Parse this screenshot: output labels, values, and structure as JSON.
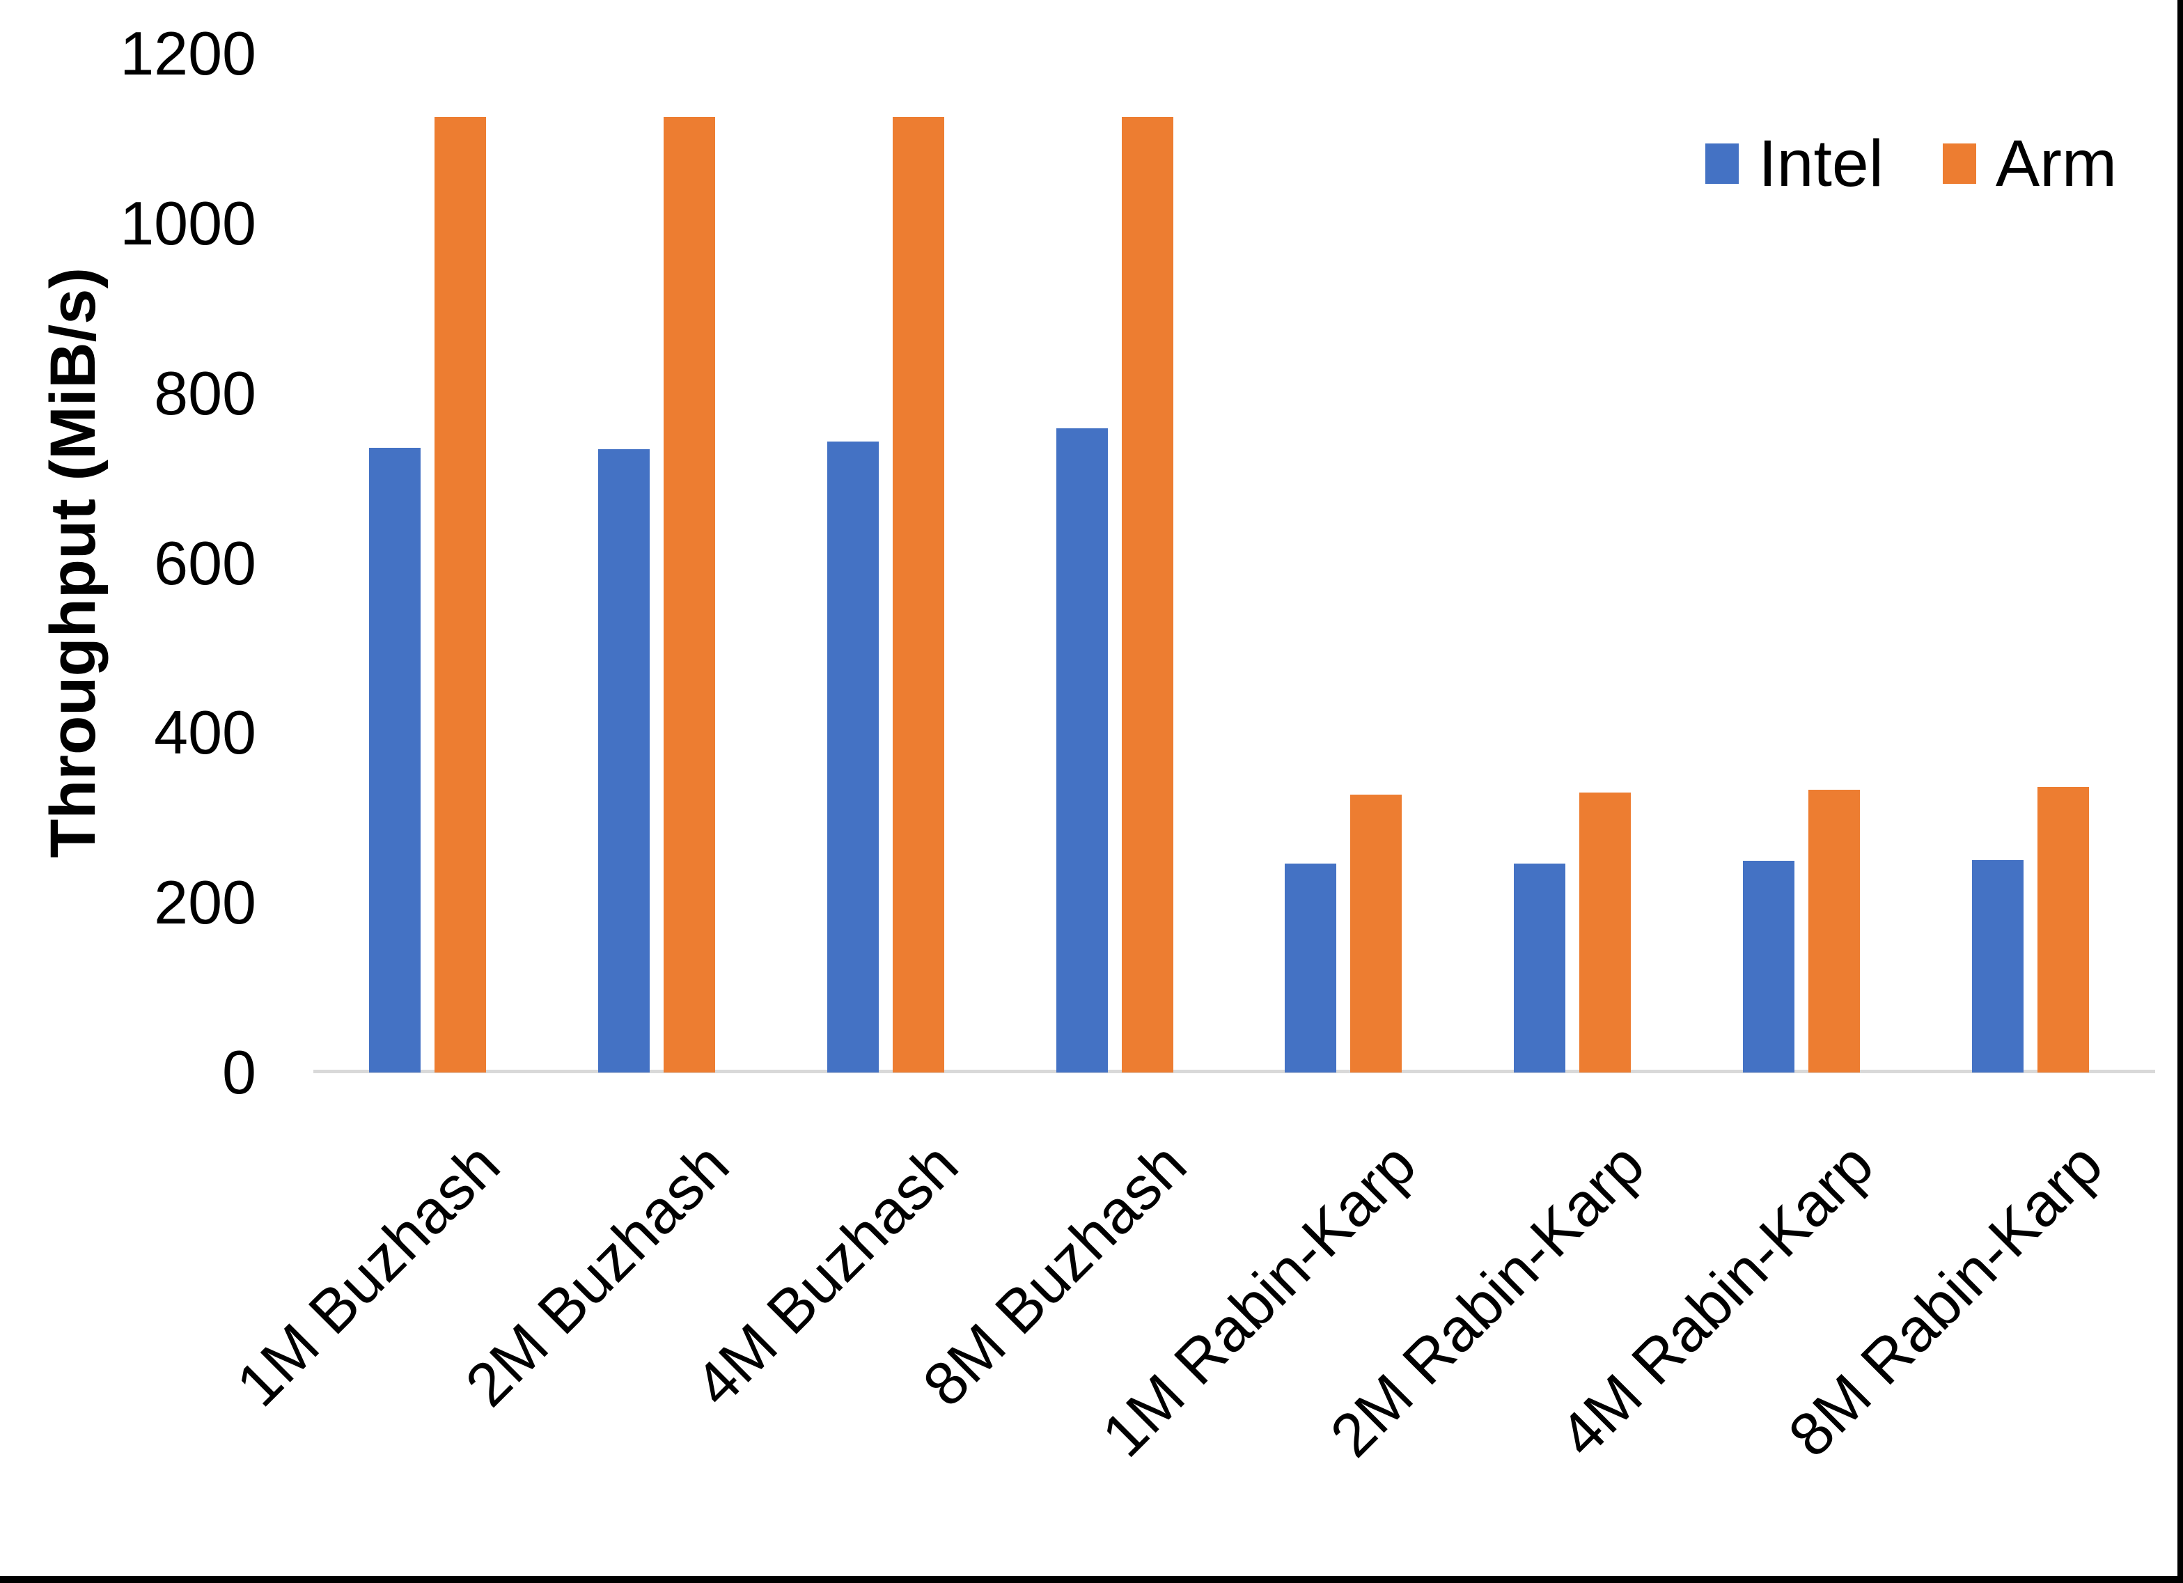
{
  "chart_data": {
    "type": "bar",
    "title": "",
    "ylabel": "Throughput (MiB/s)",
    "xlabel": "",
    "ylim": [
      0,
      1200
    ],
    "yticks": [
      0,
      200,
      400,
      600,
      800,
      1000,
      1200
    ],
    "grid": false,
    "legend_position": "top-right",
    "categories": [
      "1M Buzhash",
      "2M Buzhash",
      "4M Buzhash",
      "8M Buzhash",
      "1M Rabin-Karp",
      "2M Rabin-Karp",
      "4M Rabin-Karp",
      "8M Rabin-Karp"
    ],
    "series": [
      {
        "name": "Intel",
        "color": "#4472C4",
        "values": [
          736,
          734,
          743,
          759,
          246,
          246,
          249,
          250
        ]
      },
      {
        "name": "Arm",
        "color": "#ED7D31",
        "values": [
          1125,
          1125,
          1125,
          1125,
          327,
          330,
          333,
          336
        ]
      }
    ],
    "colors": {
      "intel": "#4472C4",
      "arm": "#ED7D31",
      "axis_line": "#D9D9D9",
      "text": "#000000"
    }
  }
}
